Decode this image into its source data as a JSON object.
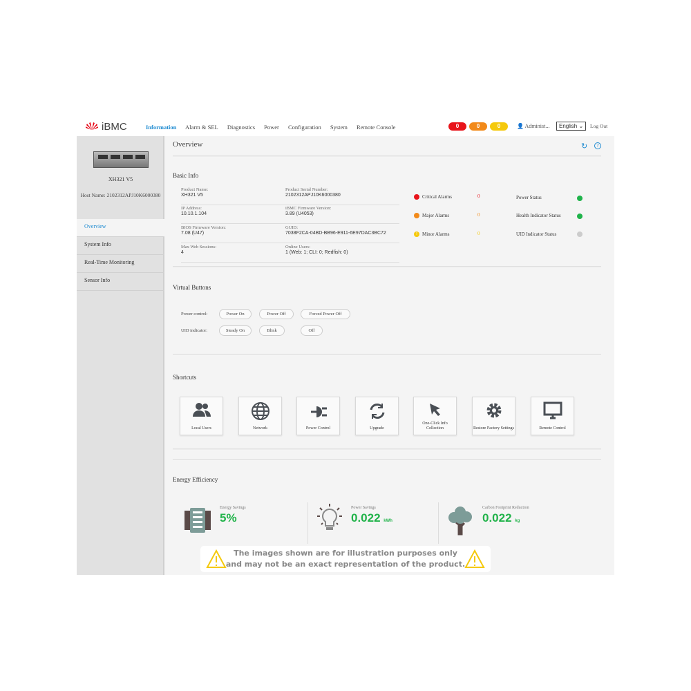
{
  "header": {
    "brand": "iBMC",
    "brand_sub": "HUAWEI",
    "nav": [
      "Information",
      "Alarm & SEL",
      "Diagnostics",
      "Power",
      "Configuration",
      "System",
      "Remote Console"
    ],
    "active_nav": "Information",
    "alarm_badges": [
      {
        "count": "0",
        "color": "#e8141b"
      },
      {
        "count": "0",
        "color": "#f28a1a"
      },
      {
        "count": "0",
        "color": "#f5c90c"
      }
    ],
    "user": "Administ...",
    "language": "English",
    "logout": "Log Out"
  },
  "sidebar": {
    "model": "XH321 V5",
    "host_name": "Host Name: 2102312APJ10K6000380",
    "items": [
      "Overview",
      "System Info",
      "Real-Time Monitoring",
      "Sensor Info"
    ]
  },
  "page": {
    "title": "Overview"
  },
  "basic_info": {
    "title": "Basic Info",
    "fields": [
      {
        "label": "Product Name:",
        "value": "XH321 V5"
      },
      {
        "label": "Product Serial Number:",
        "value": "2102312APJ10K6000380"
      },
      {
        "label": "IP Address:",
        "value": "10.10.1.104"
      },
      {
        "label": "iBMC Firmware Version:",
        "value": "3.89 (U4053)"
      },
      {
        "label": "BIOS Firmware Version:",
        "value": "7.08 (U47)"
      },
      {
        "label": "GUID:",
        "value": "7038F2CA-04BD-BB96-E911-6E97DAC3BC72"
      },
      {
        "label": "Max Web Sessions:",
        "value": "4"
      },
      {
        "label": "Online Users:",
        "value": "1 (Web: 1; CLI: 0; Redfish: 0)"
      }
    ],
    "alarms": [
      {
        "label": "Critical Alarms",
        "count": "0",
        "color": "#e8141b"
      },
      {
        "label": "Major Alarms",
        "count": "0",
        "color": "#f28a1a"
      },
      {
        "label": "Minor Alarms",
        "count": "0",
        "color": "#f5c90c"
      }
    ],
    "statuses": [
      {
        "label": "Power Status",
        "color": "#1fb34a"
      },
      {
        "label": "Health Indicator Status",
        "color": "#1fb34a"
      },
      {
        "label": "UID Indicator Status",
        "color": "#cccccc"
      }
    ]
  },
  "virtual_buttons": {
    "title": "Virtual Buttons",
    "power_label": "Power control:",
    "power": [
      "Power On",
      "Power Off",
      "Forced Power Off"
    ],
    "uid_label": "UID indicator:",
    "uid": [
      "Steady On",
      "Blink",
      "Off"
    ]
  },
  "shortcuts": {
    "title": "Shortcuts",
    "items": [
      "Local Users",
      "Network",
      "Power Control",
      "Upgrade",
      "One-Click Info Collection",
      "Restore Factory Settings",
      "Remote Control"
    ]
  },
  "energy": {
    "title": "Energy Efficiency",
    "items": [
      {
        "label": "Energy Savings",
        "value": "5%",
        "unit": ""
      },
      {
        "label": "Power Savings",
        "value": "0.022",
        "unit": "kWh"
      },
      {
        "label": "Carbon Footprint Reduction",
        "value": "0.022",
        "unit": "kg"
      }
    ],
    "value_color": "#21b34a"
  },
  "notice": {
    "line1": "The images shown are for illustration purposes only",
    "line2": "and may not be an exact representation of the product."
  }
}
